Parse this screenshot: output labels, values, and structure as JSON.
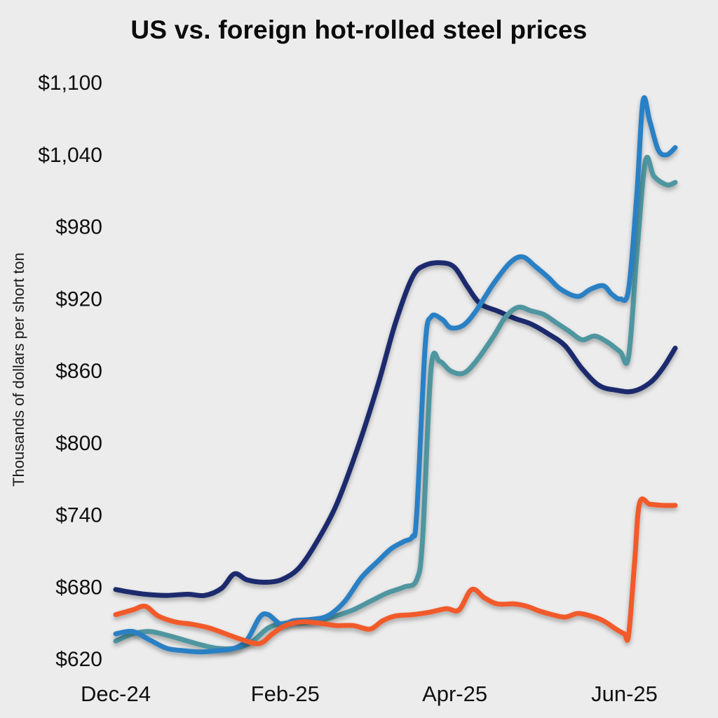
{
  "chart_data": {
    "type": "line",
    "title": "US vs. foreign hot-rolled steel prices",
    "xlabel": "",
    "ylabel": "Thousands of dollars per short ton",
    "ylim": [
      620,
      1100
    ],
    "xlim": [
      0,
      6.6
    ],
    "grid": false,
    "legend": "none",
    "background_color": "#ececec",
    "x_unit": "months-after-Dec-24",
    "y_ticks": [
      {
        "value": 620,
        "label": "$620"
      },
      {
        "value": 680,
        "label": "$680"
      },
      {
        "value": 740,
        "label": "$740"
      },
      {
        "value": 800,
        "label": "$800"
      },
      {
        "value": 860,
        "label": "$860"
      },
      {
        "value": 920,
        "label": "$920"
      },
      {
        "value": 980,
        "label": "$980"
      },
      {
        "value": 1040,
        "label": "$1,040"
      },
      {
        "value": 1100,
        "label": "$1,100"
      }
    ],
    "x_ticks": [
      {
        "x": 0,
        "label": "Dec-24"
      },
      {
        "x": 2,
        "label": "Feb-25"
      },
      {
        "x": 4,
        "label": "Apr-25"
      },
      {
        "x": 6,
        "label": "Jun-25"
      }
    ],
    "series": [
      {
        "name": "navy-line",
        "color": "#1a2b6d",
        "points": [
          [
            0,
            678
          ],
          [
            0.15,
            676
          ],
          [
            0.35,
            674
          ],
          [
            0.6,
            673
          ],
          [
            0.85,
            674
          ],
          [
            1.05,
            673
          ],
          [
            1.25,
            679
          ],
          [
            1.4,
            691
          ],
          [
            1.55,
            686
          ],
          [
            1.75,
            684
          ],
          [
            1.95,
            686
          ],
          [
            2.15,
            695
          ],
          [
            2.35,
            715
          ],
          [
            2.6,
            748
          ],
          [
            2.85,
            795
          ],
          [
            3.1,
            850
          ],
          [
            3.3,
            900
          ],
          [
            3.5,
            938
          ],
          [
            3.65,
            948
          ],
          [
            3.85,
            950
          ],
          [
            4.0,
            946
          ],
          [
            4.15,
            930
          ],
          [
            4.3,
            916
          ],
          [
            4.5,
            910
          ],
          [
            4.7,
            904
          ],
          [
            4.9,
            899
          ],
          [
            5.1,
            891
          ],
          [
            5.3,
            881
          ],
          [
            5.5,
            862
          ],
          [
            5.7,
            848
          ],
          [
            5.9,
            844
          ],
          [
            6.1,
            843
          ],
          [
            6.3,
            850
          ],
          [
            6.45,
            862
          ],
          [
            6.6,
            879
          ]
        ]
      },
      {
        "name": "teal-line",
        "color": "#4f96a0",
        "points": [
          [
            0,
            635
          ],
          [
            0.2,
            641
          ],
          [
            0.4,
            643
          ],
          [
            0.6,
            640
          ],
          [
            0.8,
            636
          ],
          [
            1.0,
            632
          ],
          [
            1.2,
            629
          ],
          [
            1.4,
            629
          ],
          [
            1.6,
            634
          ],
          [
            1.8,
            646
          ],
          [
            2.0,
            650
          ],
          [
            2.2,
            650
          ],
          [
            2.4,
            652
          ],
          [
            2.6,
            656
          ],
          [
            2.8,
            661
          ],
          [
            3.0,
            668
          ],
          [
            3.2,
            675
          ],
          [
            3.4,
            680
          ],
          [
            3.55,
            686
          ],
          [
            3.62,
            720
          ],
          [
            3.72,
            862
          ],
          [
            3.82,
            868
          ],
          [
            3.95,
            860
          ],
          [
            4.1,
            858
          ],
          [
            4.25,
            868
          ],
          [
            4.45,
            888
          ],
          [
            4.6,
            905
          ],
          [
            4.75,
            913
          ],
          [
            4.9,
            910
          ],
          [
            5.05,
            907
          ],
          [
            5.2,
            900
          ],
          [
            5.35,
            893
          ],
          [
            5.5,
            886
          ],
          [
            5.65,
            889
          ],
          [
            5.8,
            884
          ],
          [
            5.95,
            876
          ],
          [
            6.05,
            872
          ],
          [
            6.15,
            960
          ],
          [
            6.25,
            1035
          ],
          [
            6.35,
            1022
          ],
          [
            6.5,
            1015
          ],
          [
            6.6,
            1017
          ]
        ]
      },
      {
        "name": "blue-line",
        "color": "#2b80c4",
        "points": [
          [
            0,
            641
          ],
          [
            0.2,
            643
          ],
          [
            0.4,
            636
          ],
          [
            0.6,
            629
          ],
          [
            0.8,
            627
          ],
          [
            1.0,
            626
          ],
          [
            1.2,
            627
          ],
          [
            1.4,
            629
          ],
          [
            1.55,
            636
          ],
          [
            1.7,
            655
          ],
          [
            1.8,
            657
          ],
          [
            1.95,
            649
          ],
          [
            2.1,
            652
          ],
          [
            2.3,
            653
          ],
          [
            2.5,
            656
          ],
          [
            2.7,
            668
          ],
          [
            2.9,
            688
          ],
          [
            3.1,
            702
          ],
          [
            3.25,
            712
          ],
          [
            3.4,
            718
          ],
          [
            3.5,
            722
          ],
          [
            3.55,
            740
          ],
          [
            3.65,
            880
          ],
          [
            3.72,
            905
          ],
          [
            3.85,
            903
          ],
          [
            3.95,
            896
          ],
          [
            4.1,
            898
          ],
          [
            4.25,
            910
          ],
          [
            4.45,
            932
          ],
          [
            4.65,
            950
          ],
          [
            4.8,
            955
          ],
          [
            4.95,
            947
          ],
          [
            5.1,
            938
          ],
          [
            5.25,
            928
          ],
          [
            5.45,
            922
          ],
          [
            5.6,
            928
          ],
          [
            5.75,
            931
          ],
          [
            5.85,
            924
          ],
          [
            5.95,
            920
          ],
          [
            6.05,
            928
          ],
          [
            6.15,
            1010
          ],
          [
            6.22,
            1085
          ],
          [
            6.3,
            1068
          ],
          [
            6.4,
            1044
          ],
          [
            6.5,
            1040
          ],
          [
            6.6,
            1046
          ]
        ]
      },
      {
        "name": "orange-line",
        "color": "#f15a29",
        "points": [
          [
            0,
            657
          ],
          [
            0.2,
            661
          ],
          [
            0.35,
            664
          ],
          [
            0.5,
            656
          ],
          [
            0.7,
            651
          ],
          [
            0.9,
            649
          ],
          [
            1.1,
            646
          ],
          [
            1.3,
            641
          ],
          [
            1.5,
            636
          ],
          [
            1.7,
            633
          ],
          [
            1.85,
            641
          ],
          [
            2.0,
            648
          ],
          [
            2.2,
            651
          ],
          [
            2.4,
            650
          ],
          [
            2.6,
            648
          ],
          [
            2.8,
            648
          ],
          [
            3.0,
            645
          ],
          [
            3.15,
            652
          ],
          [
            3.3,
            656
          ],
          [
            3.5,
            657
          ],
          [
            3.7,
            659
          ],
          [
            3.9,
            662
          ],
          [
            4.05,
            661
          ],
          [
            4.2,
            678
          ],
          [
            4.35,
            671
          ],
          [
            4.5,
            666
          ],
          [
            4.7,
            666
          ],
          [
            4.85,
            664
          ],
          [
            5.0,
            660
          ],
          [
            5.15,
            657
          ],
          [
            5.3,
            655
          ],
          [
            5.45,
            658
          ],
          [
            5.6,
            656
          ],
          [
            5.75,
            652
          ],
          [
            5.9,
            645
          ],
          [
            6.0,
            641
          ],
          [
            6.05,
            640
          ],
          [
            6.12,
            700
          ],
          [
            6.18,
            750
          ],
          [
            6.3,
            749
          ],
          [
            6.45,
            748
          ],
          [
            6.6,
            748
          ]
        ]
      }
    ]
  }
}
